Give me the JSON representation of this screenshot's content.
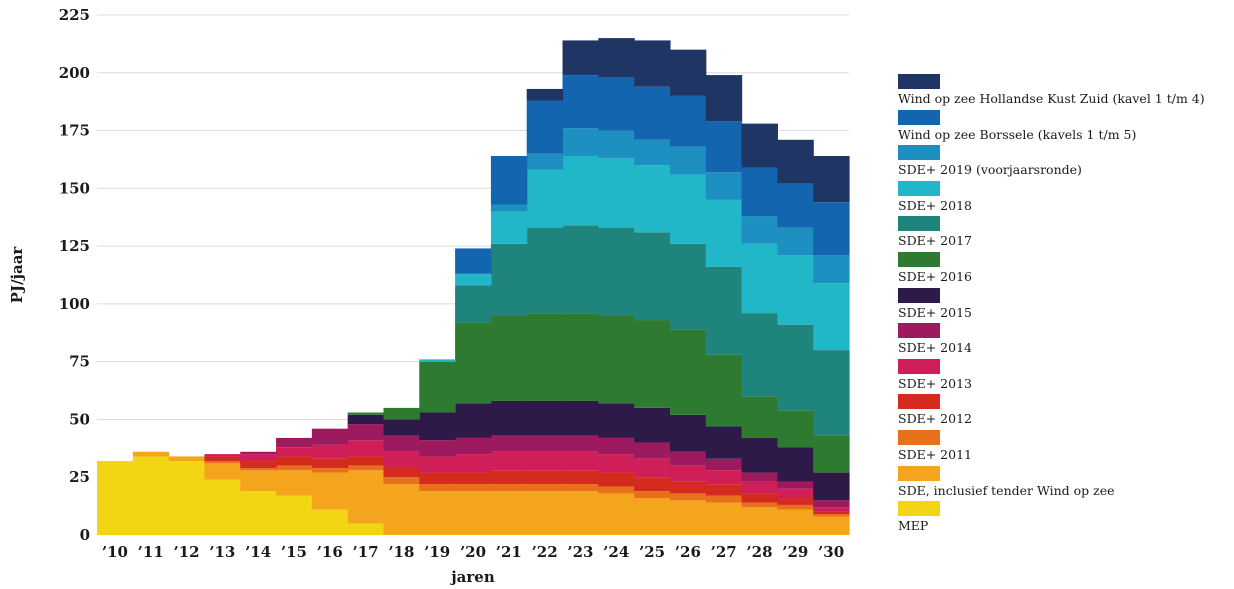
{
  "chart_data": {
    "type": "area",
    "step": true,
    "stacked": true,
    "xlabel": "jaren",
    "ylabel": "PJ/jaar",
    "ylim": [
      0,
      225
    ],
    "yticks": [
      0,
      25,
      50,
      75,
      100,
      125,
      150,
      175,
      200,
      225
    ],
    "grid": true,
    "legend_position": "right",
    "categories": [
      "’10",
      "’11",
      "’12",
      "’13",
      "’14",
      "’15",
      "’16",
      "’17",
      "’18",
      "’19",
      "’20",
      "’21",
      "’22",
      "’23",
      "’24",
      "’25",
      "’26",
      "’27",
      "’28",
      "’29",
      "’30"
    ],
    "series": [
      {
        "name": "MEP",
        "color": "#f2d515",
        "values": [
          32,
          34,
          32,
          24,
          19,
          17,
          11,
          5,
          0,
          0,
          0,
          0,
          0,
          0,
          0,
          0,
          0,
          0,
          0,
          0,
          0
        ]
      },
      {
        "name": "SDE, inclusief tender Wind op zee",
        "color": "#f4a41d",
        "values": [
          0,
          2,
          2,
          7,
          9,
          11,
          16,
          23,
          22,
          19,
          19,
          19,
          19,
          19,
          18,
          16,
          15,
          14,
          12,
          11,
          8
        ]
      },
      {
        "name": "SDE+ 2011",
        "color": "#e8701a",
        "values": [
          0,
          0,
          0,
          1,
          1,
          2,
          2,
          2,
          3,
          3,
          3,
          3,
          3,
          3,
          3,
          3,
          3,
          3,
          2,
          2,
          1
        ]
      },
      {
        "name": "SDE+ 2012",
        "color": "#d52b1e",
        "values": [
          0,
          0,
          0,
          2,
          3,
          4,
          4,
          4,
          4,
          5,
          5,
          6,
          6,
          6,
          6,
          6,
          5,
          5,
          4,
          3,
          1
        ]
      },
      {
        "name": "SDE+ 2013",
        "color": "#cf1e58",
        "values": [
          0,
          0,
          0,
          1,
          3,
          4,
          6,
          7,
          7,
          7,
          8,
          8,
          8,
          8,
          8,
          8,
          7,
          6,
          5,
          4,
          2
        ]
      },
      {
        "name": "SDE+ 2014",
        "color": "#9e1a5f",
        "values": [
          0,
          0,
          0,
          0,
          1,
          4,
          7,
          7,
          7,
          7,
          7,
          7,
          7,
          7,
          7,
          7,
          6,
          5,
          4,
          3,
          3
        ]
      },
      {
        "name": "SDE+ 2015",
        "color": "#2e1a48",
        "values": [
          0,
          0,
          0,
          0,
          0,
          0,
          0,
          4,
          7,
          12,
          15,
          15,
          15,
          15,
          15,
          15,
          16,
          14,
          15,
          15,
          12
        ]
      },
      {
        "name": "SDE+ 2016",
        "color": "#2e7a30",
        "values": [
          0,
          0,
          0,
          0,
          0,
          0,
          0,
          1,
          5,
          22,
          35,
          37,
          38,
          38,
          38,
          38,
          37,
          31,
          18,
          16,
          16
        ]
      },
      {
        "name": "SDE+ 2017",
        "color": "#1f847c",
        "values": [
          0,
          0,
          0,
          0,
          0,
          0,
          0,
          0,
          0,
          0,
          16,
          31,
          37,
          38,
          38,
          38,
          37,
          38,
          36,
          37,
          37
        ]
      },
      {
        "name": "SDE+ 2018",
        "color": "#21b6c8",
        "values": [
          0,
          0,
          0,
          0,
          0,
          0,
          0,
          0,
          0,
          1,
          5,
          14,
          25,
          30,
          30,
          29,
          30,
          29,
          30,
          30,
          29
        ]
      },
      {
        "name": "SDE+ 2019 (voorjaarsronde)",
        "color": "#1d8fc0",
        "values": [
          0,
          0,
          0,
          0,
          0,
          0,
          0,
          0,
          0,
          0,
          0,
          3,
          7,
          12,
          12,
          11,
          12,
          12,
          12,
          12,
          12
        ]
      },
      {
        "name": "Wind op zee Borssele (kavels 1 t/m 5)",
        "color": "#1465b0",
        "values": [
          0,
          0,
          0,
          0,
          0,
          0,
          0,
          0,
          0,
          0,
          11,
          21,
          23,
          23,
          23,
          23,
          22,
          22,
          21,
          19,
          23
        ]
      },
      {
        "name": "Wind op zee Hollandse Kust Zuid (kavel 1 t/m 4)",
        "color": "#1f3564",
        "values": [
          0,
          0,
          0,
          0,
          0,
          0,
          0,
          0,
          0,
          0,
          0,
          0,
          5,
          15,
          17,
          20,
          20,
          20,
          19,
          19,
          20
        ]
      }
    ]
  }
}
